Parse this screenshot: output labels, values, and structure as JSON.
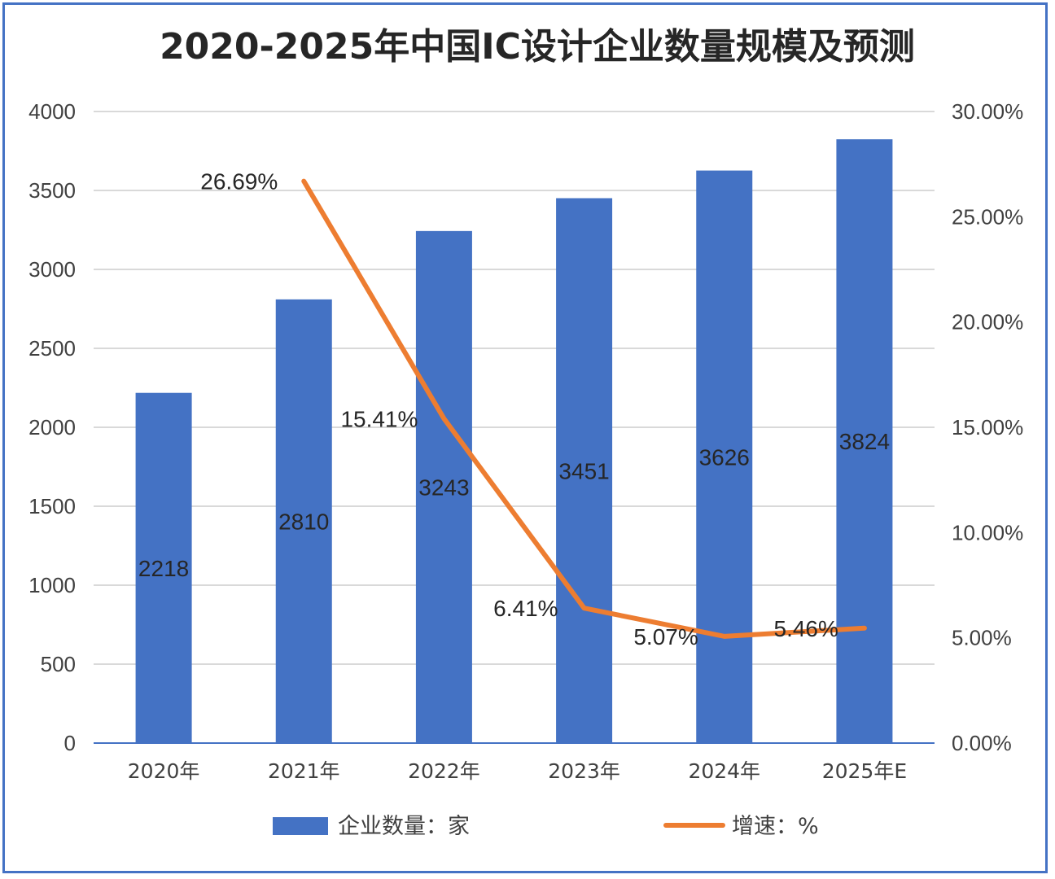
{
  "chart_data": {
    "type": "bar",
    "title": "2020-2025年中国IC设计企业数量规模及预测",
    "categories": [
      "2020年",
      "2021年",
      "2022年",
      "2023年",
      "2024年",
      "2025年E"
    ],
    "series": [
      {
        "name": "企业数量：家",
        "type": "bar",
        "axis": "left",
        "color": "#4472C4",
        "values": [
          2218,
          2810,
          3243,
          3451,
          3626,
          3824
        ],
        "labels": [
          "2218",
          "2810",
          "3243",
          "3451",
          "3626",
          "3824"
        ]
      },
      {
        "name": "增速：%",
        "type": "line",
        "axis": "right",
        "color": "#ED7D31",
        "values": [
          null,
          26.69,
          15.41,
          6.41,
          5.07,
          5.46
        ],
        "labels": [
          "",
          "26.69%",
          "15.41%",
          "6.41%",
          "5.07%",
          "5.46%"
        ]
      }
    ],
    "ylim": [
      0,
      4000
    ],
    "yticks": [
      "0",
      "500",
      "1000",
      "1500",
      "2000",
      "2500",
      "3000",
      "3500",
      "4000"
    ],
    "y2lim": [
      0,
      30
    ],
    "y2ticks": [
      "0.00%",
      "5.00%",
      "10.00%",
      "15.00%",
      "20.00%",
      "25.00%",
      "30.00%"
    ],
    "grid": true,
    "legend_position": "bottom"
  },
  "colors": {
    "frame": "#4472C4",
    "grid": "#D9D9D9",
    "axis_line": "#4472C4"
  }
}
